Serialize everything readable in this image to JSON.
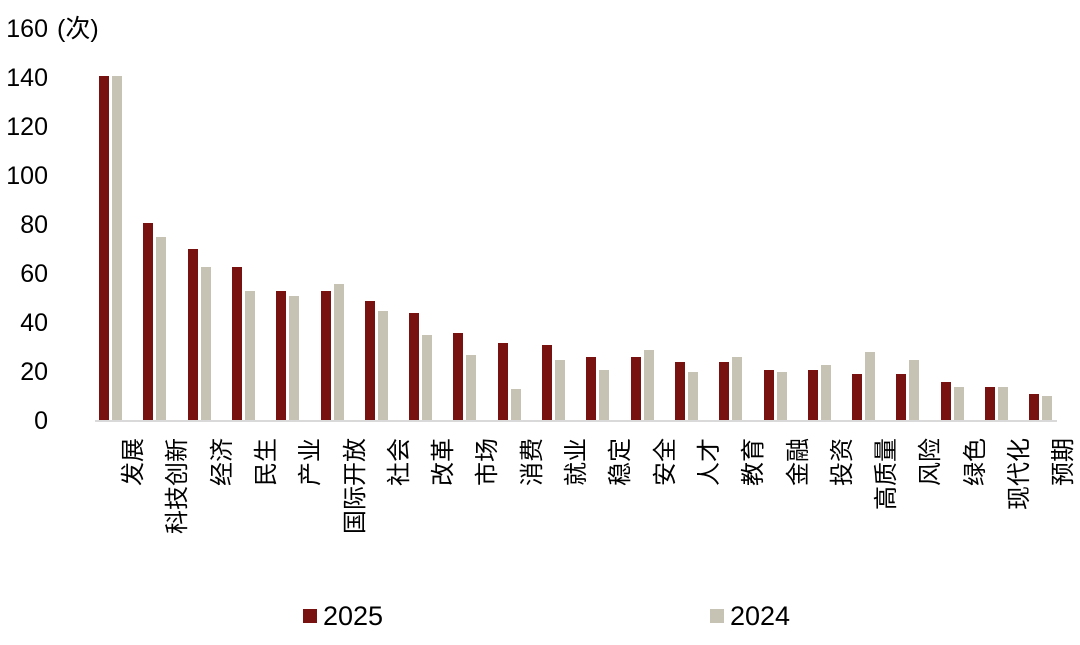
{
  "chart_data": {
    "type": "bar",
    "title": "",
    "unit_label": "(次)",
    "ylabel": "",
    "xlabel": "",
    "ylim": [
      0,
      160
    ],
    "ytick_step": 20,
    "yticks": [
      160,
      140,
      120,
      100,
      80,
      60,
      40,
      20,
      0
    ],
    "grid": false,
    "legend_position": "bottom",
    "categories": [
      "发展",
      "科技创新",
      "经济",
      "民生",
      "产业",
      "国际开放",
      "社会",
      "改革",
      "市场",
      "消费",
      "就业",
      "稳定",
      "安全",
      "人才",
      "教育",
      "金融",
      "投资",
      "高质量",
      "风险",
      "绿色",
      "现代化",
      "预期"
    ],
    "series": [
      {
        "name": "2025",
        "color": "#781210",
        "values": [
          141,
          81,
          70,
          63,
          53,
          53,
          49,
          44,
          36,
          32,
          31,
          26,
          26,
          24,
          24,
          21,
          21,
          19,
          19,
          16,
          14,
          11
        ]
      },
      {
        "name": "2024",
        "color": "#c6c3b4",
        "values": [
          141,
          75,
          63,
          53,
          51,
          56,
          45,
          35,
          27,
          13,
          25,
          21,
          29,
          20,
          26,
          20,
          23,
          28,
          25,
          14,
          14,
          10
        ]
      }
    ],
    "colors": {
      "axis_line": "#d9d9d9",
      "text": "#000000",
      "background": "#ffffff"
    }
  }
}
